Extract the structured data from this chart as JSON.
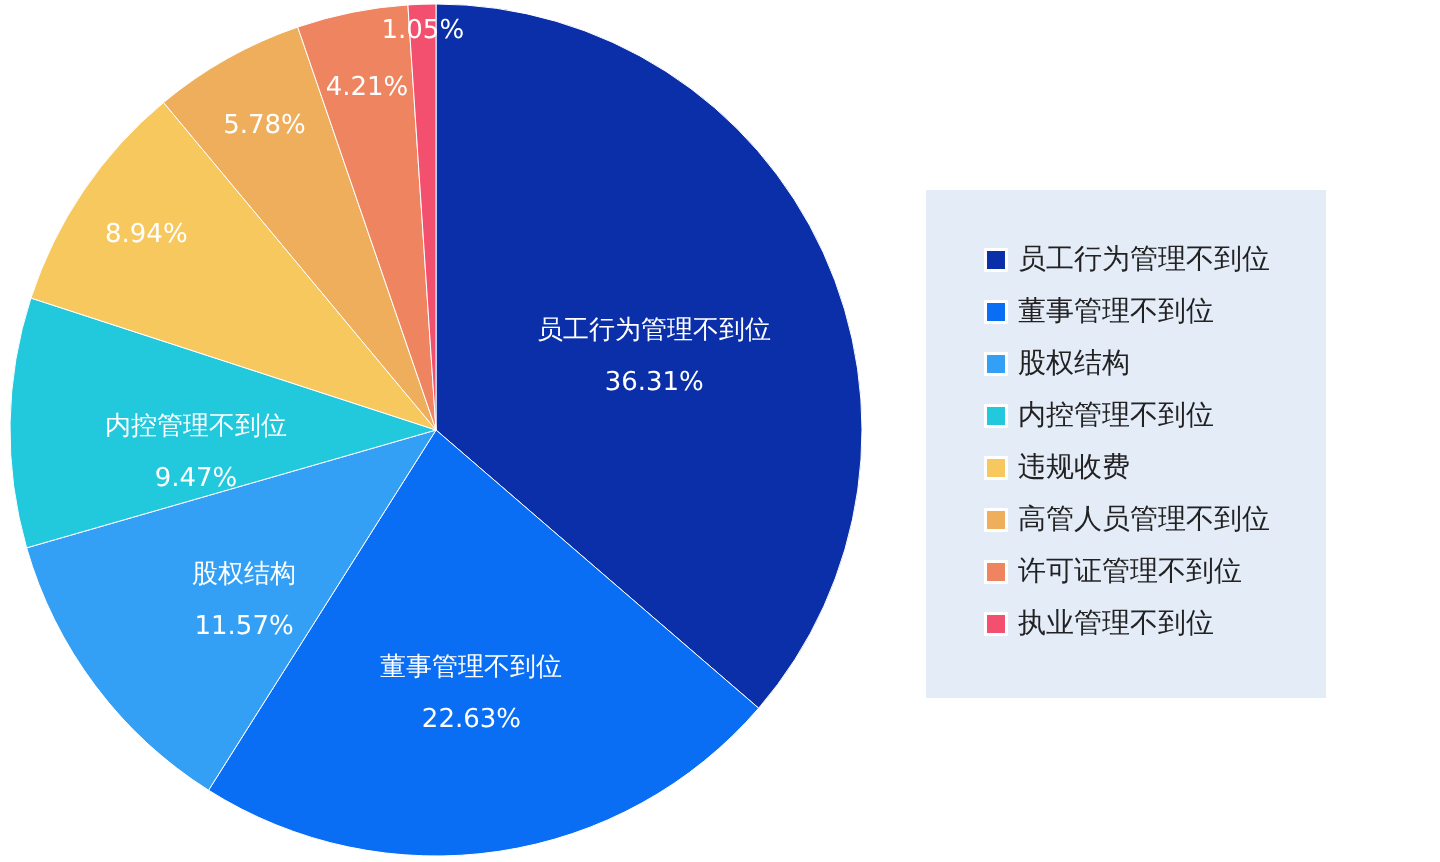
{
  "chart_data": {
    "type": "pie",
    "categories": [
      "员工行为管理不到位",
      "董事管理不到位",
      "股权结构",
      "内控管理不到位",
      "违规收费",
      "高管人员管理不到位",
      "许可证管理不到位",
      "执业管理不到位"
    ],
    "values": [
      36.31,
      22.63,
      11.57,
      9.47,
      8.94,
      5.78,
      4.21,
      1.05
    ],
    "colors": [
      "#0a2fa8",
      "#0a6ef5",
      "#33a0f5",
      "#22c8dc",
      "#f6c85e",
      "#eeae5c",
      "#ee8560",
      "#f2506e"
    ],
    "value_labels": [
      "员工行为管理不到位\n36.31%",
      "董事管理不到位\n22.63%",
      "股权结构\n11.57%",
      "内控管理不到位\n9.47%",
      "8.94%",
      "5.78%",
      "4.21%",
      "1.05%"
    ],
    "legend": "right"
  }
}
